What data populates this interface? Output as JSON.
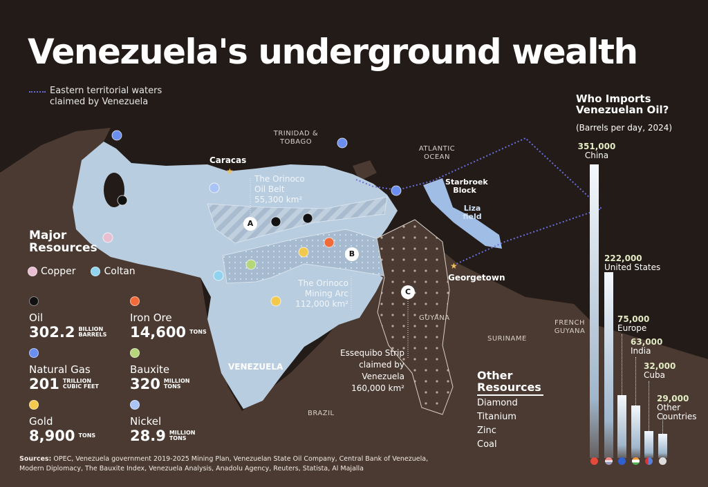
{
  "title": "Venezuela's underground wealth",
  "legend_line": "Eastern territorial waters claimed by Venezuela",
  "map_labels": {
    "caracas": "Caracas",
    "trinidad": "TRINIDAD & TOBAGO",
    "atlantic": "ATLANTIC OCEAN",
    "starbroek": "Starbroek Block",
    "liza": "Liza field",
    "georgetown": "Georgetown",
    "guyana": "GUYANA",
    "suriname": "SURINAME",
    "french_guyana": "FRENCH GUYANA",
    "brazil": "BRAZIL",
    "venezuela": "VENEZUELA",
    "oil_belt": {
      "name1": "The Orinoco",
      "name2": "Oil Belt",
      "area": "55,300 km²",
      "badge": "A"
    },
    "mining_arc": {
      "name1": "The Orinoco",
      "name2": "Mining Arc",
      "area": "112,000 km²",
      "badge": "B"
    },
    "essequibo": {
      "name1": "Essequibo Strip",
      "name2": "claimed by Venezuela",
      "area": "160,000 km²",
      "badge": "C"
    }
  },
  "major_resources": {
    "title": "Major Resources",
    "chips": [
      {
        "name": "Copper",
        "color": "#e8bfd0"
      },
      {
        "name": "Coltan",
        "color": "#8fd3ee"
      }
    ],
    "items": [
      {
        "name": "Oil",
        "value": "302.2",
        "unit": "BILLION BARRELS",
        "color": "#111111"
      },
      {
        "name": "Iron Ore",
        "value": "14,600",
        "unit": "TONS",
        "color": "#f06a3a"
      },
      {
        "name": "Natural Gas",
        "value": "201",
        "unit": "TRILLION CUBIC FEET",
        "color": "#6b8ff0"
      },
      {
        "name": "Bauxite",
        "value": "320",
        "unit": "MILLION TONS",
        "color": "#b5d67a"
      },
      {
        "name": "Gold",
        "value": "8,900",
        "unit": "TONS",
        "color": "#f2c94c"
      },
      {
        "name": "Nickel",
        "value": "28.9",
        "unit": "MILLION TONS",
        "color": "#a9c4f5"
      }
    ]
  },
  "other_resources": {
    "title": "Other Resources",
    "items": [
      "Diamond",
      "Titanium",
      "Zinc",
      "Coal"
    ]
  },
  "chart_data": {
    "type": "bar",
    "title": "Who Imports Venezuelan Oil?",
    "subtitle": "(Barrels per day, 2024)",
    "categories": [
      "China",
      "United States",
      "Europe",
      "India",
      "Cuba",
      "Other Countries"
    ],
    "values": [
      351000,
      222000,
      75000,
      63000,
      32000,
      29000
    ],
    "labels": [
      "351,000",
      "222,000",
      "75,000",
      "63,000",
      "32,000",
      "29,000"
    ],
    "flags": [
      "china-flag",
      "usa-flag",
      "eu-flag",
      "india-flag",
      "cuba-flag",
      "other-flag"
    ]
  },
  "sources": {
    "label": "Sources:",
    "text": "OPEC, Venezuela government 2019-2025 Mining Plan, Venezuelan State Oil Company, Central Bank of Venezuela, Modern Diplomacy, The Bauxite Index, Venezuela Analysis, Anadolu Agency, Reuters, Statista, Al Majalla"
  }
}
